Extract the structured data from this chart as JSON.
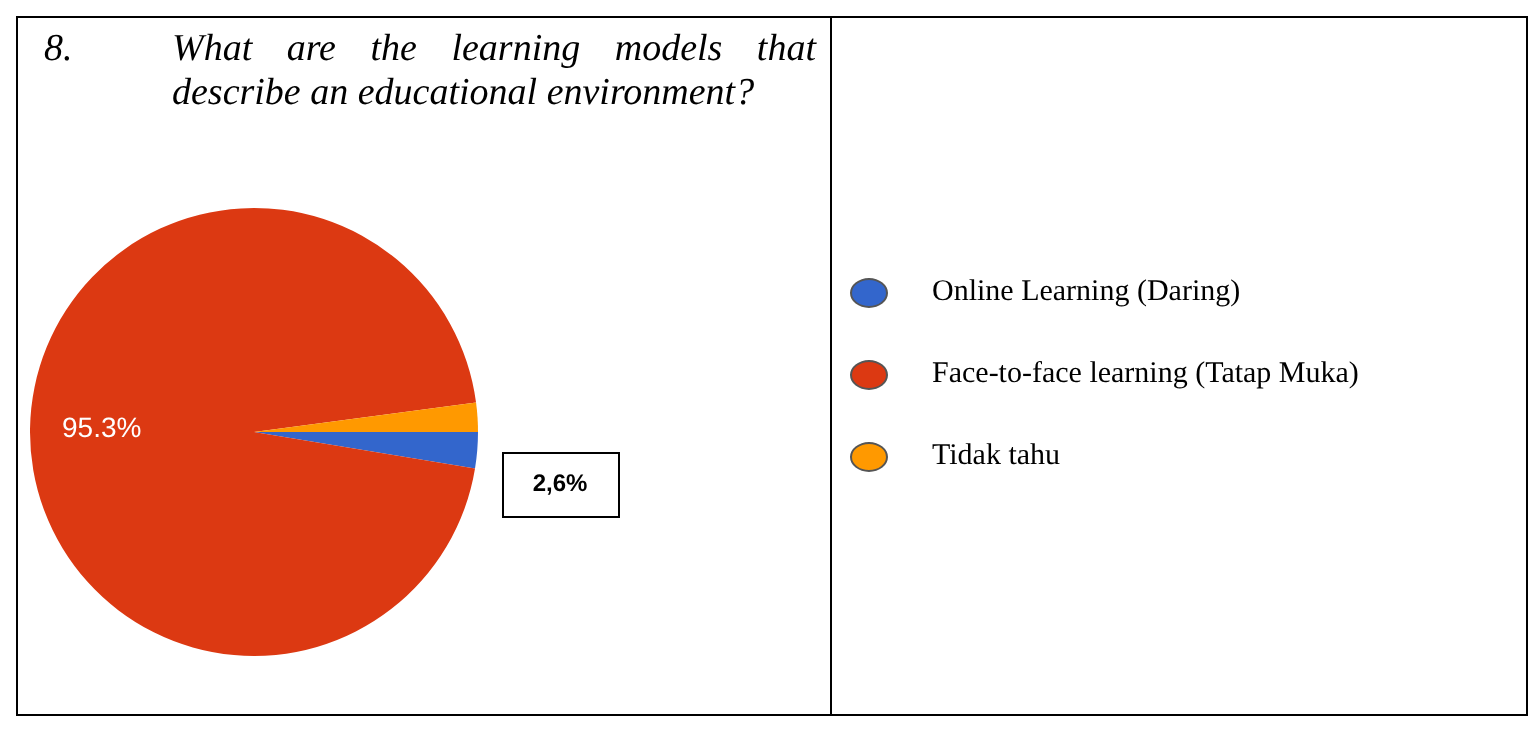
{
  "chart_data": {
    "type": "pie",
    "title": "What are the learning models that describe an educational environment?",
    "subtitle": "8.",
    "categories": [
      "Online Learning (Daring)",
      "Face-to-face learning (Tatap Muka)",
      "Tidak tahu"
    ],
    "values": [
      2.6,
      95.3,
      2.1
    ],
    "colors": [
      "#3366cc",
      "#dc3912",
      "#ff9900"
    ],
    "value_labels": [
      "2,6%",
      "95.3%",
      null
    ],
    "legend": "right"
  }
}
